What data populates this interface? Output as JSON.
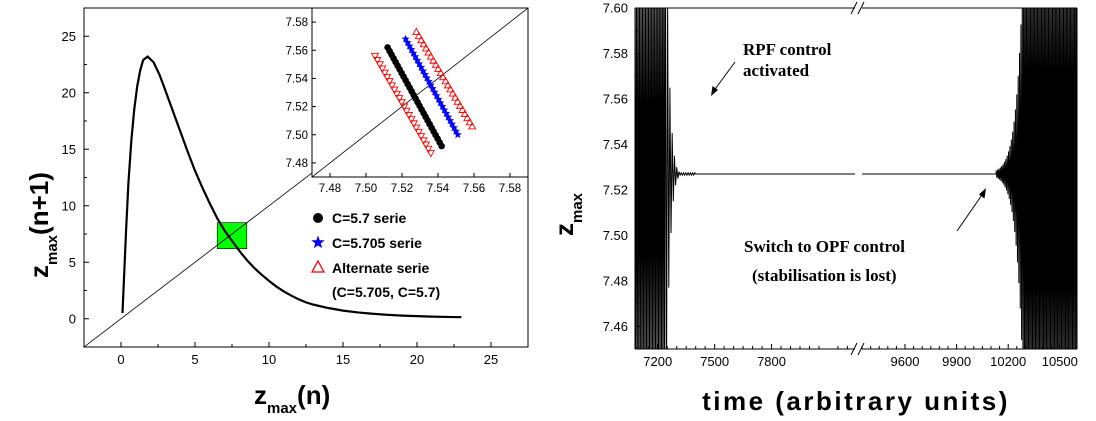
{
  "chart_data": [
    {
      "type": "line",
      "xlabel": "z",
      "xlabel_sub": "max",
      "xlabel_suffix": "(n)",
      "ylabel": "z",
      "ylabel_sub": "max",
      "ylabel_suffix": "(n+1)",
      "xlim": [
        -2.5,
        27.5
      ],
      "ylim": [
        -2.5,
        27.5
      ],
      "xticks": [
        0,
        5,
        10,
        15,
        20,
        25
      ],
      "yticks": [
        0,
        5,
        10,
        15,
        20,
        25
      ],
      "series": [
        {
          "name": "",
          "style": "line",
          "color": "#000000",
          "x": [
            0.1,
            0.2,
            0.35,
            0.5,
            0.7,
            0.9,
            1.1,
            1.3,
            1.5,
            1.8,
            2.2,
            2.6,
            3.0,
            3.5,
            4.0,
            4.5,
            5.0,
            5.5,
            6.0,
            6.5,
            7.0,
            7.5,
            8.0,
            8.5,
            9.0,
            9.5,
            10.0,
            10.5,
            11.0,
            11.5,
            12.0,
            12.5,
            13.0,
            14.0,
            15.0,
            16.0,
            17.0,
            18.0,
            19.0,
            20.0,
            21.0,
            22.0,
            23.0
          ],
          "y": [
            0.5,
            3.5,
            8.0,
            12.0,
            15.8,
            18.6,
            20.6,
            22.0,
            22.9,
            23.2,
            22.7,
            21.6,
            20.2,
            18.4,
            16.6,
            14.8,
            13.1,
            11.6,
            10.2,
            8.9,
            7.8,
            6.9,
            6.0,
            5.2,
            4.5,
            3.9,
            3.35,
            2.85,
            2.42,
            2.05,
            1.72,
            1.45,
            1.25,
            0.95,
            0.72,
            0.56,
            0.44,
            0.35,
            0.28,
            0.23,
            0.19,
            0.16,
            0.14
          ]
        },
        {
          "name": "",
          "style": "line",
          "color": "#000000",
          "x": [
            -2.5,
            27.5
          ],
          "y": [
            -2.5,
            27.5
          ]
        }
      ],
      "highlight_box": {
        "x": [
          6.5,
          8.5
        ],
        "y": [
          6.2,
          8.5
        ],
        "color": "#00ff00"
      },
      "legend": {
        "placement": "bottom-right",
        "entries": [
          {
            "marker": "circle",
            "color": "#000000",
            "label": "C=5.7 serie"
          },
          {
            "marker": "star",
            "color": "#0000ff",
            "label": "C=5.705 serie"
          },
          {
            "marker": "triangle-open",
            "color": "#ff0000",
            "label": "Alternate serie"
          }
        ],
        "note": "(C=5.705, C=5.7)"
      }
    },
    {
      "type": "scatter",
      "inset": true,
      "xlim": [
        7.47,
        7.59
      ],
      "ylim": [
        7.47,
        7.59
      ],
      "xticks": [
        "7.48",
        "7.50",
        "7.52",
        "7.54",
        "7.56",
        "7.58"
      ],
      "yticks": [
        "7.48",
        "7.50",
        "7.52",
        "7.54",
        "7.56",
        "7.58"
      ],
      "series": [
        {
          "name": "C=5.7 serie",
          "marker": "circle",
          "color": "#000000",
          "x_range": [
            7.512,
            7.542
          ],
          "y_range": [
            7.562,
            7.492
          ],
          "n": 28
        },
        {
          "name": "C=5.705 serie",
          "marker": "star",
          "color": "#0000ff",
          "x_range": [
            7.522,
            7.551
          ],
          "y_range": [
            7.568,
            7.5
          ],
          "n": 28
        },
        {
          "name": "Alternate serie (upper)",
          "marker": "triangle-open",
          "color": "#ff0000",
          "x_range": [
            7.528,
            7.559
          ],
          "y_range": [
            7.573,
            7.506
          ],
          "n": 24
        },
        {
          "name": "Alternate serie (lower)",
          "marker": "triangle-down-open",
          "color": "#ff0000",
          "x_range": [
            7.505,
            7.536
          ],
          "y_range": [
            7.556,
            7.487
          ],
          "n": 24
        }
      ],
      "diagonal": true
    },
    {
      "type": "line",
      "xlabel": "time (arbitrary units)",
      "ylabel": "z",
      "ylabel_sub": "max",
      "ylim": [
        7.45,
        7.6
      ],
      "yticks": [
        "7.46",
        "7.48",
        "7.50",
        "7.52",
        "7.54",
        "7.56",
        "7.58",
        "7.60"
      ],
      "broken_axis": true,
      "segment_left": {
        "xlim": [
          7080,
          8240
        ],
        "xticks": [
          7200,
          7500,
          7800
        ]
      },
      "segment_right": {
        "xlim": [
          9350,
          10600
        ],
        "xticks": [
          9600,
          9900,
          10200,
          10500
        ]
      },
      "signal": {
        "color": "#000000",
        "steady_value": 7.527,
        "dense_until": 7240,
        "control_on": 7290,
        "decay_end": 7400,
        "grow_start": 10130,
        "dense_from": 10290
      },
      "annotations": [
        {
          "text": "RPF control",
          "line2": "activated"
        },
        {
          "text": "Switch to OPF control",
          "line2": "(stabilisation is lost)"
        }
      ]
    }
  ]
}
